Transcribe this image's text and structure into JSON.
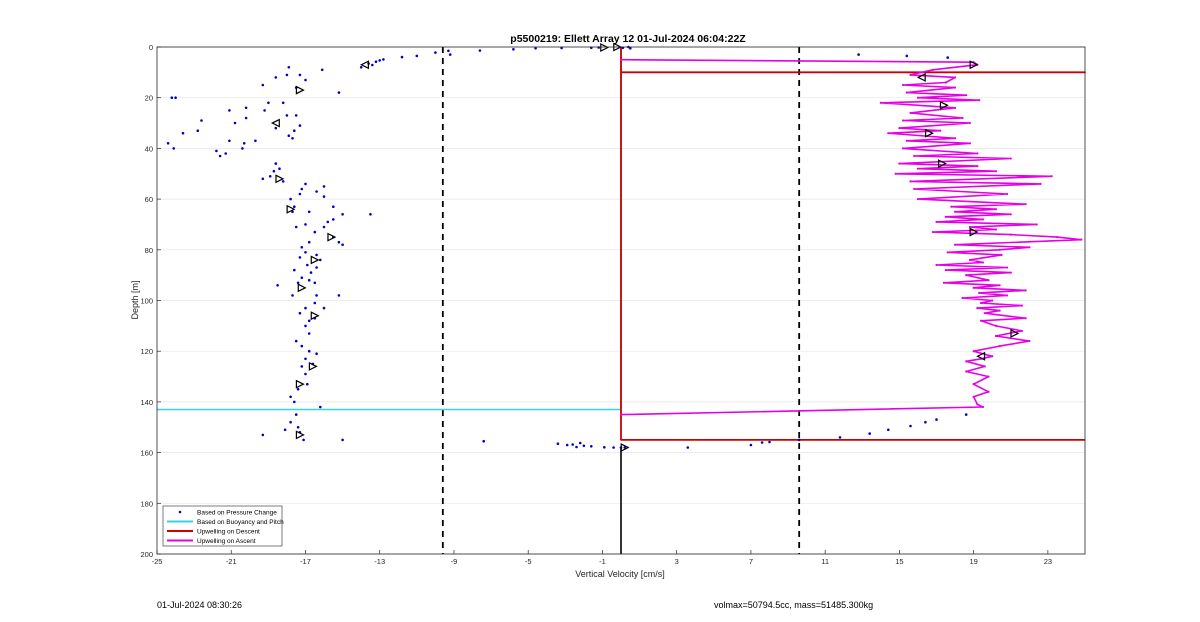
{
  "chart_data": {
    "type": "scatter",
    "title": "p5500219: Ellett Array 12 01-Jul-2024 06:04:22Z",
    "xlabel": "Vertical Velocity [cm/s]",
    "ylabel": "Depth [m]",
    "xlim": [
      -25,
      25
    ],
    "ylim": [
      0,
      200
    ],
    "y_reversed": true,
    "xticks": [
      -25,
      -21,
      -17,
      -13,
      -9,
      -5,
      -1,
      3,
      7,
      11,
      15,
      19,
      23
    ],
    "xtick_labels": [
      "-25",
      "-21",
      "-17",
      "-13",
      "-9",
      "-5",
      "-1",
      "3",
      "7",
      "11",
      "15",
      "19",
      "23"
    ],
    "yticks": [
      0,
      20,
      40,
      60,
      80,
      100,
      120,
      140,
      160,
      180,
      200
    ],
    "ytick_labels": [
      "0",
      "20",
      "40",
      "60",
      "80",
      "100",
      "120",
      "140",
      "160",
      "180",
      "200"
    ],
    "grid": true,
    "legend_position": "bottom-left",
    "legend": [
      {
        "label": "Based on Pressure Change",
        "color": "#0000cc",
        "style": "dot"
      },
      {
        "label": "Based on Buoyancy and Pitch",
        "color": "#33d6e6",
        "style": "line"
      },
      {
        "label": "Upwelling on Descent",
        "color": "#cc0000",
        "style": "line"
      },
      {
        "label": "Upwelling on Ascent",
        "color": "#e600e6",
        "style": "line"
      }
    ],
    "reference_lines": {
      "dashed_x": [
        -9.6,
        9.6
      ],
      "solid_x": 0,
      "solid_x_depth_range": [
        158,
        200
      ]
    },
    "series": [
      {
        "name": "Based on Pressure Change",
        "style": "dots",
        "color": "#0000cc",
        "points": [
          [
            0.4,
            0
          ],
          [
            0.1,
            0.3
          ],
          [
            0.5,
            0.5
          ],
          [
            -1.2,
            0.2
          ],
          [
            -1.6,
            0.3
          ],
          [
            -3.2,
            0.4
          ],
          [
            -4.6,
            0.5
          ],
          [
            -5.8,
            0.9
          ],
          [
            -7.6,
            1.4
          ],
          [
            -9.3,
            1.5
          ],
          [
            -10.0,
            2.2
          ],
          [
            -9.2,
            3.0
          ],
          [
            -11.0,
            3.5
          ],
          [
            -11.8,
            4.0
          ],
          [
            -12.8,
            4.9
          ],
          [
            -13.0,
            5.3
          ],
          [
            -13.2,
            5.8
          ],
          [
            -13.6,
            6.5
          ],
          [
            -13.4,
            7.1
          ],
          [
            -14.0,
            8.0
          ],
          [
            -17.0,
            13
          ],
          [
            -17.9,
            8
          ],
          [
            -18.0,
            11
          ],
          [
            -17.3,
            11
          ],
          [
            -16.1,
            9
          ],
          [
            -15.2,
            18
          ],
          [
            -17.5,
            16
          ],
          [
            -18.6,
            12
          ],
          [
            -19.3,
            15
          ],
          [
            -19.0,
            22
          ],
          [
            -20.2,
            24
          ],
          [
            -21.1,
            25
          ],
          [
            -20.8,
            30
          ],
          [
            -20.2,
            28
          ],
          [
            -19.2,
            25
          ],
          [
            -18.2,
            22
          ],
          [
            -18.0,
            27
          ],
          [
            -17.5,
            27
          ],
          [
            -17.3,
            31
          ],
          [
            -17.6,
            33
          ],
          [
            -17.9,
            35
          ],
          [
            -17.7,
            36
          ],
          [
            -18.6,
            32
          ],
          [
            -19.7,
            37
          ],
          [
            -20.3,
            38
          ],
          [
            -20.4,
            40
          ],
          [
            -21.1,
            37
          ],
          [
            -21.8,
            41
          ],
          [
            -21.3,
            42
          ],
          [
            -21.6,
            43
          ],
          [
            -22.6,
            29
          ],
          [
            -22.8,
            33
          ],
          [
            -24.2,
            20
          ],
          [
            -23.6,
            34
          ],
          [
            -24.4,
            38
          ],
          [
            -24.1,
            40
          ],
          [
            -18.6,
            46
          ],
          [
            -18.4,
            48
          ],
          [
            -18.7,
            49
          ],
          [
            -18.9,
            51
          ],
          [
            -19.3,
            52
          ],
          [
            -18.2,
            53
          ],
          [
            -17.0,
            54
          ],
          [
            -16.0,
            55
          ],
          [
            -16.4,
            57
          ],
          [
            -17.2,
            56
          ],
          [
            -17.8,
            60
          ],
          [
            -17.3,
            58
          ],
          [
            -16.0,
            59
          ],
          [
            -17.6,
            63
          ],
          [
            -17.7,
            65
          ],
          [
            -16.8,
            65
          ],
          [
            -15.5,
            63
          ],
          [
            -15.0,
            66
          ],
          [
            -15.5,
            68
          ],
          [
            -15.8,
            69
          ],
          [
            -16.0,
            71
          ],
          [
            -16.5,
            73
          ],
          [
            -17.0,
            70
          ],
          [
            -17.5,
            71
          ],
          [
            -15.5,
            75
          ],
          [
            -15.2,
            77
          ],
          [
            -15.0,
            78
          ],
          [
            -16.8,
            77
          ],
          [
            -17.2,
            79
          ],
          [
            -17.0,
            81
          ],
          [
            -16.4,
            82
          ],
          [
            -16.2,
            84
          ],
          [
            -17.3,
            83
          ],
          [
            -16.9,
            86
          ],
          [
            -16.4,
            87
          ],
          [
            -16.7,
            89
          ],
          [
            -17.6,
            88
          ],
          [
            -17.2,
            91
          ],
          [
            -16.8,
            92
          ],
          [
            -16.5,
            93
          ],
          [
            -17.4,
            93
          ],
          [
            -17.7,
            98
          ],
          [
            -16.4,
            98
          ],
          [
            -16.5,
            101
          ],
          [
            -16.0,
            103
          ],
          [
            -17.0,
            103
          ],
          [
            -17.3,
            105
          ],
          [
            -16.8,
            108
          ],
          [
            -16.5,
            107
          ],
          [
            -17.0,
            110
          ],
          [
            -16.8,
            113
          ],
          [
            -17.5,
            116
          ],
          [
            -17.2,
            118
          ],
          [
            -16.8,
            120
          ],
          [
            -16.4,
            121
          ],
          [
            -17.0,
            123
          ],
          [
            -16.6,
            125
          ],
          [
            -17.2,
            126
          ],
          [
            -17.0,
            129
          ],
          [
            -16.9,
            133
          ],
          [
            -17.4,
            135
          ],
          [
            -17.8,
            138
          ],
          [
            -17.6,
            140
          ],
          [
            -16.2,
            142
          ],
          [
            -17.5,
            145
          ],
          [
            -17.8,
            148
          ],
          [
            -17.4,
            150
          ],
          [
            -18.1,
            151
          ],
          [
            -19.3,
            153
          ],
          [
            -17.3,
            152
          ],
          [
            -17.1,
            155
          ],
          [
            -15.0,
            155
          ],
          [
            -13.5,
            66
          ],
          [
            -24.0,
            20
          ],
          [
            -18.5,
            94
          ],
          [
            -15.2,
            98
          ],
          [
            -7.4,
            155.5
          ],
          [
            -3.4,
            156.5
          ],
          [
            -2.9,
            157
          ],
          [
            -2.6,
            156.8
          ],
          [
            -2.2,
            156.2
          ],
          [
            -2.0,
            157.3
          ],
          [
            -1.6,
            157.5
          ],
          [
            -2.4,
            157.8
          ],
          [
            -0.9,
            157.9
          ],
          [
            -0.4,
            158
          ],
          [
            0.0,
            158
          ],
          [
            0.2,
            158
          ],
          [
            3.6,
            158
          ],
          [
            7.0,
            157
          ],
          [
            7.6,
            156
          ],
          [
            8.0,
            155.8
          ],
          [
            9.6,
            155
          ],
          [
            11.8,
            154
          ],
          [
            13.4,
            152.5
          ],
          [
            14.4,
            151
          ],
          [
            15.6,
            149.5
          ],
          [
            16.4,
            148
          ],
          [
            17.0,
            147
          ],
          [
            18.6,
            145
          ],
          [
            12.8,
            3
          ],
          [
            15.4,
            3.5
          ],
          [
            17.6,
            4.2
          ]
        ]
      },
      {
        "name": "Based on Buoyancy and Pitch",
        "style": "line",
        "color": "#33d6e6",
        "points": [
          [
            0,
            0
          ],
          [
            0,
            143
          ],
          [
            -25,
            143
          ]
        ]
      },
      {
        "name": "Upwelling on Descent",
        "style": "line",
        "color": "#cc0000",
        "points": [
          [
            0,
            0
          ],
          [
            0,
            10
          ],
          [
            25,
            10
          ],
          [
            0,
            10
          ],
          [
            0,
            155
          ],
          [
            25,
            155
          ]
        ]
      },
      {
        "name": "Upwelling on Ascent",
        "style": "line",
        "color": "#e600e6",
        "points": [
          [
            0,
            5
          ],
          [
            19,
            6
          ],
          [
            19.2,
            7
          ],
          [
            16.8,
            9
          ],
          [
            15.6,
            11
          ],
          [
            18.0,
            12
          ],
          [
            17.5,
            14
          ],
          [
            15.2,
            15
          ],
          [
            18.0,
            16
          ],
          [
            15.4,
            18
          ],
          [
            18.6,
            19
          ],
          [
            16.0,
            20
          ],
          [
            19.3,
            21
          ],
          [
            14.0,
            22
          ],
          [
            18.0,
            24
          ],
          [
            15.6,
            26
          ],
          [
            18.4,
            28
          ],
          [
            15.2,
            29
          ],
          [
            18.8,
            30
          ],
          [
            15.0,
            32
          ],
          [
            17.2,
            33
          ],
          [
            14.4,
            34
          ],
          [
            18.0,
            36
          ],
          [
            15.4,
            37
          ],
          [
            18.8,
            38
          ],
          [
            15.2,
            40
          ],
          [
            19.2,
            42
          ],
          [
            15.8,
            43
          ],
          [
            21.0,
            44
          ],
          [
            15.0,
            46
          ],
          [
            19.2,
            47
          ],
          [
            16.0,
            48
          ],
          [
            20.2,
            49
          ],
          [
            14.8,
            50
          ],
          [
            23.2,
            51
          ],
          [
            15.6,
            53
          ],
          [
            22.6,
            54
          ],
          [
            15.8,
            56
          ],
          [
            20.8,
            58
          ],
          [
            16.0,
            60
          ],
          [
            21.8,
            62
          ],
          [
            17.8,
            63
          ],
          [
            20.2,
            64
          ],
          [
            18.0,
            65
          ],
          [
            21.0,
            66
          ],
          [
            17.5,
            67
          ],
          [
            19.5,
            68
          ],
          [
            17.0,
            69
          ],
          [
            22.4,
            70
          ],
          [
            18.8,
            71
          ],
          [
            20.2,
            72
          ],
          [
            16.8,
            73
          ],
          [
            21.0,
            74
          ],
          [
            23.5,
            75
          ],
          [
            24.8,
            76
          ],
          [
            18.0,
            78
          ],
          [
            22.0,
            79
          ],
          [
            20.4,
            80
          ],
          [
            17.6,
            81
          ],
          [
            20.5,
            82
          ],
          [
            18.8,
            84
          ],
          [
            19.5,
            85
          ],
          [
            17.0,
            86
          ],
          [
            20.8,
            87
          ],
          [
            17.5,
            88
          ],
          [
            21.0,
            89
          ],
          [
            18.6,
            90
          ],
          [
            19.8,
            92
          ],
          [
            17.4,
            93
          ],
          [
            20.4,
            94
          ],
          [
            19.0,
            95
          ],
          [
            21.8,
            96
          ],
          [
            19.3,
            97
          ],
          [
            20.8,
            98
          ],
          [
            18.4,
            99
          ],
          [
            20.0,
            100
          ],
          [
            19.4,
            101
          ],
          [
            21.6,
            102
          ],
          [
            19.2,
            103
          ],
          [
            20.4,
            104
          ],
          [
            19.6,
            105
          ],
          [
            21.8,
            107
          ],
          [
            19.4,
            108
          ],
          [
            20.2,
            110
          ],
          [
            21.6,
            112
          ],
          [
            20.2,
            114
          ],
          [
            22.0,
            116
          ],
          [
            20.4,
            118
          ],
          [
            19.0,
            120
          ],
          [
            20.0,
            122
          ],
          [
            19.4,
            123
          ],
          [
            18.6,
            124
          ],
          [
            19.6,
            126
          ],
          [
            18.6,
            128
          ],
          [
            19.8,
            130
          ],
          [
            19.0,
            133
          ],
          [
            19.8,
            136
          ],
          [
            19.0,
            138
          ],
          [
            19.2,
            141
          ],
          [
            19.5,
            142
          ],
          [
            0,
            145
          ]
        ]
      }
    ],
    "markers": [
      {
        "x": -0.2,
        "y": 0,
        "dir": "right"
      },
      {
        "x": -0.9,
        "y": 0.2,
        "dir": "right"
      },
      {
        "x": -13.8,
        "y": 7,
        "dir": "left"
      },
      {
        "x": -17.3,
        "y": 17,
        "dir": "right"
      },
      {
        "x": -18.6,
        "y": 30,
        "dir": "left"
      },
      {
        "x": -18.4,
        "y": 52,
        "dir": "right"
      },
      {
        "x": -17.8,
        "y": 64,
        "dir": "right"
      },
      {
        "x": -15.6,
        "y": 75,
        "dir": "right"
      },
      {
        "x": -16.5,
        "y": 84,
        "dir": "right"
      },
      {
        "x": -17.2,
        "y": 95,
        "dir": "right"
      },
      {
        "x": -16.5,
        "y": 106,
        "dir": "right"
      },
      {
        "x": -16.6,
        "y": 126,
        "dir": "right"
      },
      {
        "x": -17.3,
        "y": 133,
        "dir": "right"
      },
      {
        "x": -17.3,
        "y": 153,
        "dir": "right"
      },
      {
        "x": 0.2,
        "y": 158,
        "dir": "right"
      },
      {
        "x": 19.0,
        "y": 7,
        "dir": "right"
      },
      {
        "x": 16.2,
        "y": 12,
        "dir": "left"
      },
      {
        "x": 17.4,
        "y": 23,
        "dir": "right"
      },
      {
        "x": 16.6,
        "y": 34,
        "dir": "right"
      },
      {
        "x": 17.3,
        "y": 46,
        "dir": "right"
      },
      {
        "x": 19.0,
        "y": 73,
        "dir": "right"
      },
      {
        "x": 21.2,
        "y": 113,
        "dir": "right"
      },
      {
        "x": 19.4,
        "y": 122,
        "dir": "left"
      }
    ]
  },
  "footer": {
    "timestamp": "01-Jul-2024 08:30:26",
    "stats": "volmax=50794.5cc, mass=51485.300kg"
  }
}
